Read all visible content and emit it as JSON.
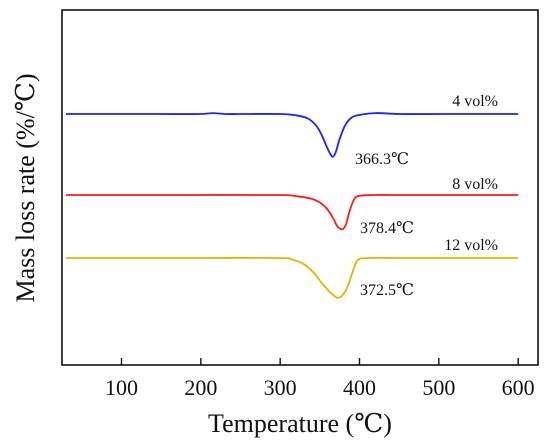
{
  "chart_data": {
    "type": "line",
    "xlabel": "Temperature (℃)",
    "ylabel": "Mass loss rate (%/℃)",
    "xlim": [
      25,
      625
    ],
    "xticks": [
      100,
      200,
      300,
      400,
      500,
      600
    ],
    "xtick_labels": [
      "100",
      "200",
      "300",
      "400",
      "500",
      "600"
    ],
    "yticks_shown": false,
    "grid": false,
    "series": [
      {
        "name": "4 vol%",
        "color": "#1f1fff",
        "peak_label": "366.3℃",
        "x": [
          30,
          100,
          150,
          200,
          215,
          230,
          250,
          300,
          320,
          335,
          345,
          352,
          358,
          363,
          366.3,
          370,
          375,
          382,
          390,
          400,
          420,
          450,
          500,
          550,
          600
        ],
        "y": [
          0.0,
          0.0,
          0.0,
          0.0,
          0.02,
          0.0,
          0.0,
          0.0,
          -0.03,
          -0.1,
          -0.25,
          -0.45,
          -0.7,
          -0.88,
          -0.95,
          -0.85,
          -0.55,
          -0.25,
          -0.08,
          -0.02,
          0.02,
          0.0,
          0.0,
          0.0,
          0.0
        ]
      },
      {
        "name": "8 vol%",
        "color": "#ff1a1a",
        "peak_label": "378.4℃",
        "x": [
          30,
          100,
          200,
          300,
          320,
          340,
          352,
          360,
          367,
          372,
          378.4,
          383,
          387,
          393,
          400,
          420,
          450,
          500,
          550,
          600
        ],
        "y": [
          0.0,
          0.0,
          0.0,
          0.0,
          -0.03,
          -0.1,
          -0.22,
          -0.38,
          -0.6,
          -0.8,
          -0.88,
          -0.75,
          -0.45,
          -0.12,
          -0.02,
          0.0,
          0.0,
          0.0,
          0.0,
          0.0
        ]
      },
      {
        "name": "12 vol%",
        "color": "#e0b400",
        "peak_label": "372.5℃",
        "x": [
          30,
          100,
          200,
          300,
          315,
          330,
          342,
          352,
          362,
          368,
          372.5,
          378,
          385,
          392,
          398,
          410,
          450,
          500,
          550,
          600
        ],
        "y": [
          0.0,
          0.0,
          0.0,
          0.0,
          -0.04,
          -0.15,
          -0.35,
          -0.6,
          -0.82,
          -0.92,
          -0.97,
          -0.92,
          -0.7,
          -0.3,
          -0.05,
          0.0,
          0.0,
          0.0,
          0.0,
          0.0
        ]
      }
    ]
  }
}
